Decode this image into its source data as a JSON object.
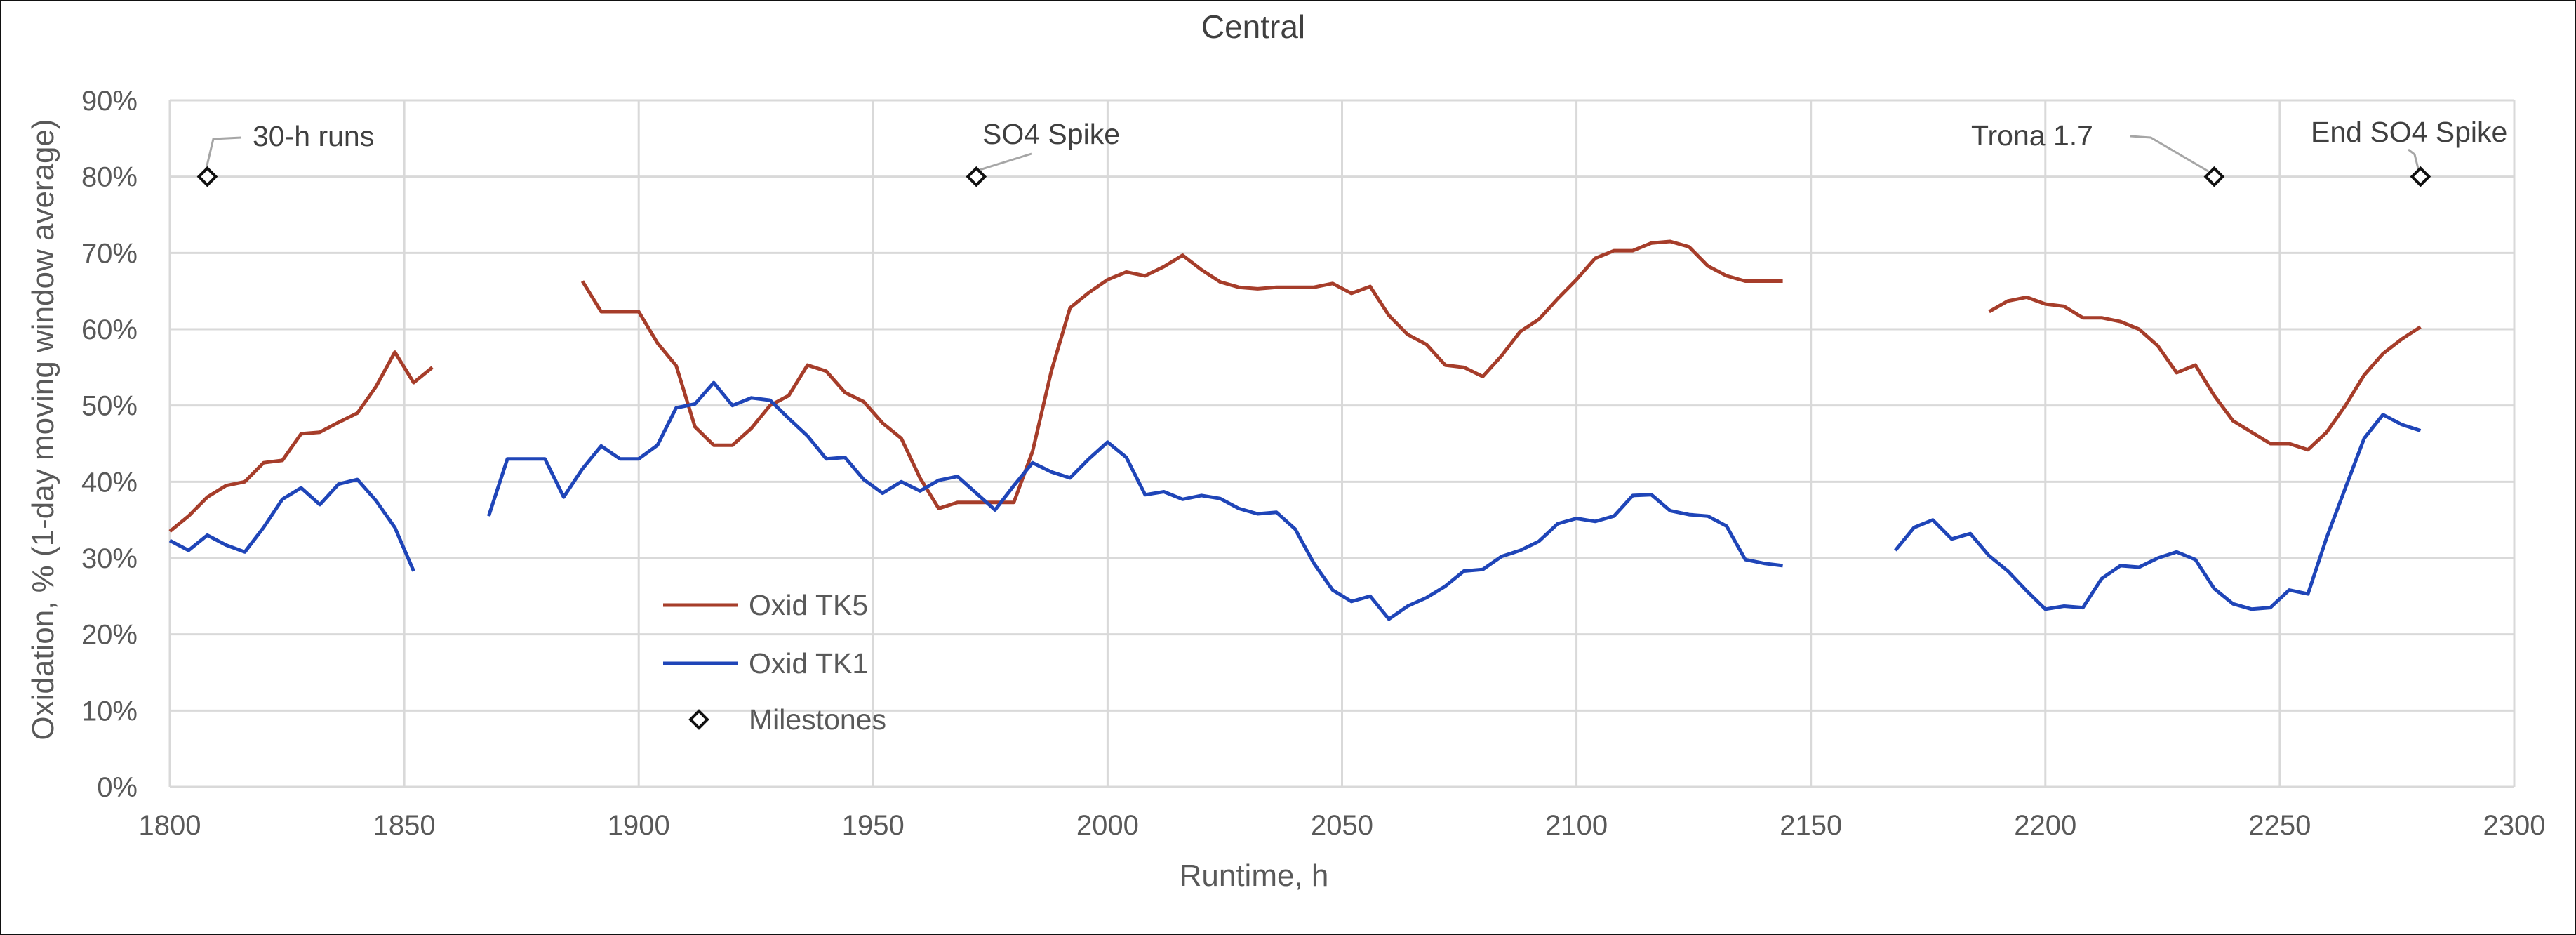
{
  "chart_data": {
    "type": "line",
    "title": "Central",
    "xlabel": "Runtime, h",
    "ylabel": "Oxidation, % (1-day moving window average)",
    "xlim": [
      1800,
      2300
    ],
    "ylim": [
      0,
      90
    ],
    "x_ticks": [
      1800,
      1850,
      1900,
      1950,
      2000,
      2050,
      2100,
      2150,
      2200,
      2250,
      2300
    ],
    "x_tick_labels": [
      "1800",
      "1850",
      "1900",
      "1950",
      "2000",
      "2050",
      "2100",
      "2150",
      "2200",
      "2250",
      "2300"
    ],
    "y_ticks": [
      0,
      10,
      20,
      30,
      40,
      50,
      60,
      70,
      80,
      90
    ],
    "y_tick_labels": [
      "0%",
      "10%",
      "20%",
      "30%",
      "40%",
      "50%",
      "60%",
      "70%",
      "80%",
      "90%"
    ],
    "grid": true,
    "legend_position": "lower-left inside plot",
    "series": [
      {
        "name": "Oxid TK5",
        "color": "#a63d2a",
        "segments": [
          [
            [
              1800,
              33.5
            ],
            [
              1804,
              35.5
            ],
            [
              1808,
              38
            ],
            [
              1812,
              39.5
            ],
            [
              1816,
              40
            ],
            [
              1820,
              42.5
            ],
            [
              1824,
              42.8
            ],
            [
              1828,
              46.3
            ],
            [
              1832,
              46.5
            ],
            [
              1836,
              47.8
            ],
            [
              1840,
              49
            ],
            [
              1844,
              52.5
            ],
            [
              1848,
              57
            ],
            [
              1852,
              53
            ],
            [
              1856,
              55
            ]
          ],
          [
            [
              1888,
              66.3
            ],
            [
              1892,
              62.3
            ],
            [
              1896,
              62.3
            ],
            [
              1900,
              62.3
            ],
            [
              1904,
              58.2
            ],
            [
              1908,
              55.2
            ],
            [
              1912,
              47.2
            ],
            [
              1916,
              44.8
            ],
            [
              1920,
              44.8
            ],
            [
              1924,
              47
            ],
            [
              1928,
              50
            ],
            [
              1932,
              51.3
            ],
            [
              1936,
              55.3
            ],
            [
              1940,
              54.5
            ],
            [
              1944,
              51.7
            ],
            [
              1948,
              50.5
            ],
            [
              1952,
              47.7
            ],
            [
              1956,
              45.7
            ],
            [
              1960,
              40.5
            ],
            [
              1964,
              36.5
            ],
            [
              1968,
              37.3
            ],
            [
              1972,
              37.3
            ],
            [
              1976,
              37.3
            ],
            [
              1980,
              37.3
            ],
            [
              1984,
              44
            ],
            [
              1988,
              54.5
            ],
            [
              1992,
              62.8
            ],
            [
              1996,
              64.8
            ],
            [
              2000,
              66.5
            ],
            [
              2004,
              67.5
            ],
            [
              2008,
              67
            ],
            [
              2012,
              68.2
            ],
            [
              2016,
              69.7
            ],
            [
              2020,
              67.8
            ],
            [
              2024,
              66.2
            ],
            [
              2028,
              65.5
            ],
            [
              2032,
              65.3
            ],
            [
              2036,
              65.5
            ],
            [
              2040,
              65.5
            ],
            [
              2044,
              65.5
            ],
            [
              2048,
              66
            ],
            [
              2052,
              64.7
            ],
            [
              2056,
              65.6
            ],
            [
              2060,
              61.8
            ],
            [
              2064,
              59.3
            ],
            [
              2068,
              58
            ],
            [
              2072,
              55.3
            ],
            [
              2076,
              55
            ],
            [
              2080,
              53.8
            ],
            [
              2084,
              56.5
            ],
            [
              2088,
              59.7
            ],
            [
              2092,
              61.3
            ],
            [
              2096,
              64
            ],
            [
              2100,
              66.5
            ],
            [
              2104,
              69.3
            ],
            [
              2108,
              70.3
            ],
            [
              2112,
              70.3
            ],
            [
              2116,
              71.3
            ],
            [
              2120,
              71.5
            ],
            [
              2124,
              70.8
            ],
            [
              2128,
              68.3
            ],
            [
              2132,
              67
            ],
            [
              2136,
              66.3
            ],
            [
              2140,
              66.3
            ],
            [
              2144,
              66.3
            ]
          ],
          [
            [
              2188,
              62.3
            ],
            [
              2192,
              63.7
            ],
            [
              2196,
              64.2
            ],
            [
              2200,
              63.3
            ],
            [
              2204,
              63
            ],
            [
              2208,
              61.5
            ],
            [
              2212,
              61.5
            ],
            [
              2216,
              61
            ],
            [
              2220,
              60
            ],
            [
              2224,
              57.8
            ],
            [
              2228,
              54.3
            ],
            [
              2232,
              55.3
            ],
            [
              2236,
              51.3
            ],
            [
              2240,
              48
            ],
            [
              2244,
              46.5
            ],
            [
              2248,
              45
            ],
            [
              2252,
              45
            ],
            [
              2256,
              44.2
            ],
            [
              2260,
              46.5
            ],
            [
              2264,
              50
            ],
            [
              2268,
              54
            ],
            [
              2272,
              56.8
            ],
            [
              2276,
              58.7
            ],
            [
              2280,
              60.3
            ]
          ]
        ]
      },
      {
        "name": "Oxid TK1",
        "color": "#1f45b8",
        "segments": [
          [
            [
              1800,
              32.3
            ],
            [
              1804,
              31
            ],
            [
              1808,
              33
            ],
            [
              1812,
              31.7
            ],
            [
              1816,
              30.8
            ],
            [
              1820,
              34
            ],
            [
              1824,
              37.7
            ],
            [
              1828,
              39.2
            ],
            [
              1832,
              37
            ],
            [
              1836,
              39.7
            ],
            [
              1840,
              40.3
            ],
            [
              1844,
              37.5
            ],
            [
              1848,
              34
            ],
            [
              1852,
              28.3
            ]
          ],
          [
            [
              1868,
              35.5
            ],
            [
              1872,
              43
            ],
            [
              1876,
              43
            ],
            [
              1880,
              43
            ],
            [
              1884,
              38
            ],
            [
              1888,
              41.7
            ],
            [
              1892,
              44.7
            ],
            [
              1896,
              43
            ],
            [
              1900,
              43
            ],
            [
              1904,
              44.8
            ],
            [
              1908,
              49.7
            ],
            [
              1912,
              50.2
            ],
            [
              1916,
              53
            ],
            [
              1920,
              50
            ],
            [
              1924,
              51
            ],
            [
              1928,
              50.7
            ],
            [
              1932,
              48.3
            ],
            [
              1936,
              46
            ],
            [
              1940,
              43
            ],
            [
              1944,
              43.2
            ],
            [
              1948,
              40.3
            ],
            [
              1952,
              38.5
            ],
            [
              1956,
              40
            ],
            [
              1960,
              38.8
            ],
            [
              1964,
              40.2
            ],
            [
              1968,
              40.7
            ],
            [
              1972,
              38.5
            ],
            [
              1976,
              36.3
            ],
            [
              1980,
              39.5
            ],
            [
              1984,
              42.5
            ],
            [
              1988,
              41.3
            ],
            [
              1992,
              40.5
            ],
            [
              1996,
              43
            ],
            [
              2000,
              45.2
            ],
            [
              2004,
              43.2
            ],
            [
              2008,
              38.3
            ],
            [
              2012,
              38.7
            ],
            [
              2016,
              37.7
            ],
            [
              2020,
              38.2
            ],
            [
              2024,
              37.8
            ],
            [
              2028,
              36.5
            ],
            [
              2032,
              35.8
            ],
            [
              2036,
              36
            ],
            [
              2040,
              33.8
            ],
            [
              2044,
              29.3
            ],
            [
              2048,
              25.8
            ],
            [
              2052,
              24.3
            ],
            [
              2056,
              25
            ],
            [
              2060,
              22
            ],
            [
              2064,
              23.7
            ],
            [
              2068,
              24.8
            ],
            [
              2072,
              26.3
            ],
            [
              2076,
              28.3
            ],
            [
              2080,
              28.5
            ],
            [
              2084,
              30.2
            ],
            [
              2088,
              31
            ],
            [
              2092,
              32.2
            ],
            [
              2096,
              34.5
            ],
            [
              2100,
              35.2
            ],
            [
              2104,
              34.8
            ],
            [
              2108,
              35.5
            ],
            [
              2112,
              38.2
            ],
            [
              2116,
              38.3
            ],
            [
              2120,
              36.2
            ],
            [
              2124,
              35.7
            ],
            [
              2128,
              35.5
            ],
            [
              2132,
              34.2
            ],
            [
              2136,
              29.8
            ],
            [
              2140,
              29.3
            ],
            [
              2144,
              29
            ]
          ],
          [
            [
              2168,
              31
            ],
            [
              2172,
              34
            ],
            [
              2176,
              35
            ],
            [
              2180,
              32.5
            ],
            [
              2184,
              33.2
            ],
            [
              2188,
              30.3
            ],
            [
              2192,
              28.3
            ],
            [
              2196,
              25.7
            ],
            [
              2200,
              23.3
            ],
            [
              2204,
              23.7
            ],
            [
              2208,
              23.5
            ],
            [
              2212,
              27.3
            ],
            [
              2216,
              29
            ],
            [
              2220,
              28.8
            ],
            [
              2224,
              30
            ],
            [
              2228,
              30.8
            ],
            [
              2232,
              29.8
            ],
            [
              2236,
              26
            ],
            [
              2240,
              24
            ],
            [
              2244,
              23.3
            ],
            [
              2248,
              23.5
            ],
            [
              2252,
              25.8
            ],
            [
              2256,
              25.3
            ],
            [
              2260,
              32.7
            ],
            [
              2264,
              39.2
            ],
            [
              2268,
              45.7
            ],
            [
              2272,
              48.8
            ],
            [
              2276,
              47.5
            ],
            [
              2280,
              46.7
            ]
          ]
        ]
      },
      {
        "name": "Milestones",
        "color": "#111111",
        "marker": "diamond",
        "points": [
          {
            "x": 1808,
            "y": 80,
            "label": "30-h runs"
          },
          {
            "x": 1972,
            "y": 80,
            "label": "SO4 Spike"
          },
          {
            "x": 2236,
            "y": 80,
            "label": "Trona 1.7"
          },
          {
            "x": 2280,
            "y": 80,
            "label": "End SO4 Spike"
          }
        ]
      }
    ]
  }
}
